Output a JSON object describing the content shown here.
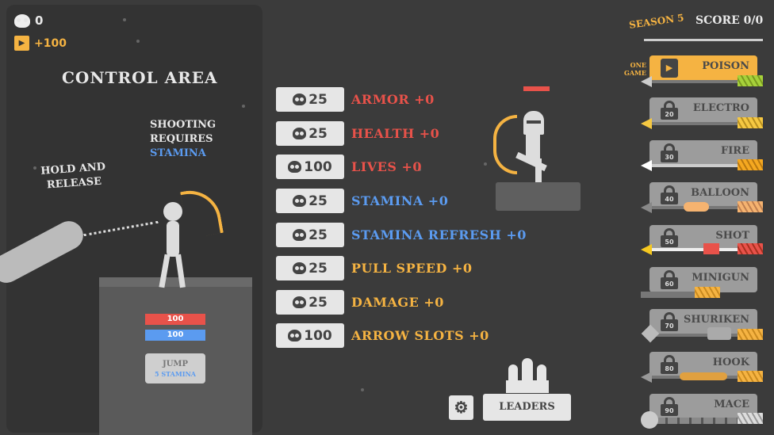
{
  "hud": {
    "skulls": "0",
    "ad_reward": "+100",
    "season": "SEASON 5",
    "score": "SCORE 0/0"
  },
  "control": {
    "title": "CONTROL AREA",
    "hint_shoot_1": "SHOOTING",
    "hint_shoot_2": "REQUIRES",
    "hint_shoot_3": "STAMINA",
    "hint_hold_1": "HOLD AND",
    "hint_hold_2": "RELEASE",
    "health": "100",
    "stamina": "100",
    "jump_label": "JUMP",
    "jump_cost": "5 STAMINA"
  },
  "upgrades": [
    {
      "cost": "25",
      "label": "ARMOR +0",
      "color": "#e8524a"
    },
    {
      "cost": "25",
      "label": "HEALTH +0",
      "color": "#e8524a"
    },
    {
      "cost": "100",
      "label": "LIVES +0",
      "color": "#e8524a"
    },
    {
      "cost": "25",
      "label": "STAMINA +0",
      "color": "#5b9bf0"
    },
    {
      "cost": "25",
      "label": "STAMINA REFRESH +0",
      "color": "#5b9bf0"
    },
    {
      "cost": "25",
      "label": "PULL SPEED +0",
      "color": "#f5b342"
    },
    {
      "cost": "25",
      "label": "DAMAGE +0",
      "color": "#f5b342"
    },
    {
      "cost": "100",
      "label": "ARROW SLOTS +0",
      "color": "#f5b342"
    }
  ],
  "weapons": {
    "one_game_1": "ONE",
    "one_game_2": "GAME",
    "items": [
      {
        "name": "POISON",
        "unlocked": true,
        "fletch": "#a6d13a"
      },
      {
        "name": "ELECTRO",
        "lock": "20",
        "fletch": "#f5c842"
      },
      {
        "name": "FIRE",
        "lock": "30",
        "fletch": "#f5a820"
      },
      {
        "name": "BALLOON",
        "lock": "40",
        "fletch": "#f5b370"
      },
      {
        "name": "SHOT",
        "lock": "50",
        "fletch": "#e8524a"
      },
      {
        "name": "MINIGUN",
        "lock": "60",
        "fletch": "#f5b342"
      },
      {
        "name": "SHURIKEN",
        "lock": "70",
        "fletch": "#f5b342"
      },
      {
        "name": "HOOK",
        "lock": "80",
        "fletch": "#f5b342"
      },
      {
        "name": "MACE",
        "lock": "90",
        "fletch": "#dddddd"
      }
    ]
  },
  "footer": {
    "leaders": "LEADERS"
  },
  "colors": {
    "accent": "#f5b342",
    "red": "#e8524a",
    "blue": "#5b9bf0"
  }
}
